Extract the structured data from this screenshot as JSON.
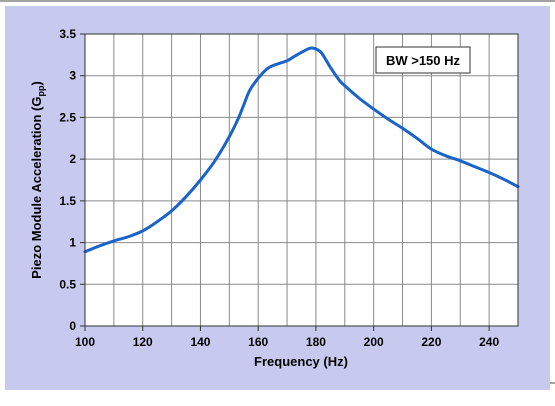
{
  "chart_data": {
    "type": "line",
    "title": "",
    "xlabel": "Frequency (Hz)",
    "ylabel_main": "Piezo Module Acceleration (G",
    "ylabel_sub": "pp",
    "ylabel_end": ")",
    "xlim": [
      100,
      250
    ],
    "ylim": [
      0,
      3.5
    ],
    "xticks": [
      100,
      120,
      140,
      160,
      180,
      200,
      220,
      240
    ],
    "xtick_labels": [
      "100",
      "120",
      "140",
      "160",
      "180",
      "200",
      "220",
      "240"
    ],
    "yticks": [
      0,
      0.5,
      1,
      1.5,
      2,
      2.5,
      3,
      3.5
    ],
    "ytick_labels": [
      "0",
      "0.5",
      "1",
      "1.5",
      "2",
      "2.5",
      "3",
      "3.5"
    ],
    "grid": true,
    "annotation": "BW >150 Hz",
    "annotation_position": "top-right",
    "colors": {
      "line": "#1a63c8",
      "panel": "#c7c9ef",
      "plot_bg": "#ffffff",
      "grid": "#8a8a8a"
    },
    "series": [
      {
        "x": [
          100,
          105,
          110,
          115,
          120,
          125,
          130,
          135,
          140,
          145,
          150,
          153,
          155,
          157,
          160,
          163,
          165,
          170,
          172,
          175,
          178,
          180,
          182,
          185,
          188,
          190,
          195,
          200,
          205,
          210,
          215,
          220,
          225,
          230,
          235,
          240,
          245,
          250
        ],
        "y": [
          0.89,
          0.96,
          1.02,
          1.07,
          1.14,
          1.25,
          1.38,
          1.55,
          1.75,
          1.98,
          2.27,
          2.48,
          2.65,
          2.82,
          2.97,
          3.08,
          3.12,
          3.18,
          3.22,
          3.28,
          3.33,
          3.32,
          3.27,
          3.1,
          2.95,
          2.88,
          2.73,
          2.6,
          2.48,
          2.37,
          2.25,
          2.12,
          2.04,
          1.98,
          1.91,
          1.84,
          1.76,
          1.67
        ]
      }
    ]
  }
}
